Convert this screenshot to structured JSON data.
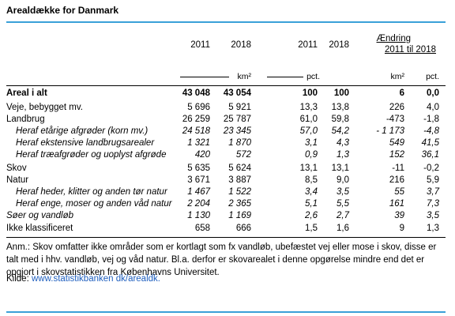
{
  "header": {
    "title": "Arealdække for Danmark"
  },
  "table": {
    "columns": [
      "2011",
      "2018",
      "2011",
      "2018",
      "Ændring",
      "2011 til 2018"
    ],
    "units": [
      "km²",
      "pct.",
      "km²",
      "pct."
    ],
    "rows": [
      [
        "Areal i alt",
        "43 048",
        "43 054",
        "100",
        "100",
        "6",
        "0,0"
      ],
      [
        "Veje, bebygget mv.",
        "5 696",
        "5 921",
        "13,3",
        "13,8",
        "226",
        "4,0"
      ],
      [
        "Landbrug",
        "26 259",
        "25 787",
        "61,0",
        "59,8",
        "-473",
        "-1,8"
      ],
      [
        "Heraf etårige afgrøder (korn mv.)",
        "24 518",
        "23 345",
        "57,0",
        "54,2",
        "- 1 173",
        "-4,8"
      ],
      [
        "Heraf ekstensive landbrugsarealer",
        "1 321",
        "1 870",
        "3,1",
        "4,3",
        "549",
        "41,5"
      ],
      [
        "Heraf træafgrøder og uoplyst afgrøde",
        "420",
        "572",
        "0,9",
        "1,3",
        "152",
        "36,1"
      ],
      [
        "Skov",
        "5 635",
        "5 624",
        "13,1",
        "13,1",
        "-11",
        "-0,2"
      ],
      [
        "Natur",
        "3 671",
        "3 887",
        "8,5",
        "9,0",
        "216",
        "5,9"
      ],
      [
        "Heraf heder, klitter og anden tør natur",
        "1 467",
        "1 522",
        "3,4",
        "3,5",
        "55",
        "3,7"
      ],
      [
        "Heraf enge, moser og anden våd natur",
        "2 204",
        "2 365",
        "5,1",
        "5,5",
        "161",
        "7,3"
      ],
      [
        "Søer og vandløb",
        "1 130",
        "1 169",
        "2,6",
        "2,7",
        "39",
        "3,5"
      ],
      [
        "Ikke klassificeret",
        "658",
        "666",
        "1,5",
        "1,6",
        "9",
        "1,3"
      ]
    ]
  },
  "footer": {
    "note": "Anm.: Skov omfatter ikke områder som er kortlagt som fx vandløb, ubefæstet vej eller mose i skov, disse er talt med i hhv. vandløb, vej og våd natur. Bl.a. derfor er skovarealet i denne opgørelse mindre end det er opgjort i skovstatistikken fra Københavns Universitet.",
    "source_label": "Kilde:",
    "source_link": "www.statistikbanken dk/arealdk."
  }
}
